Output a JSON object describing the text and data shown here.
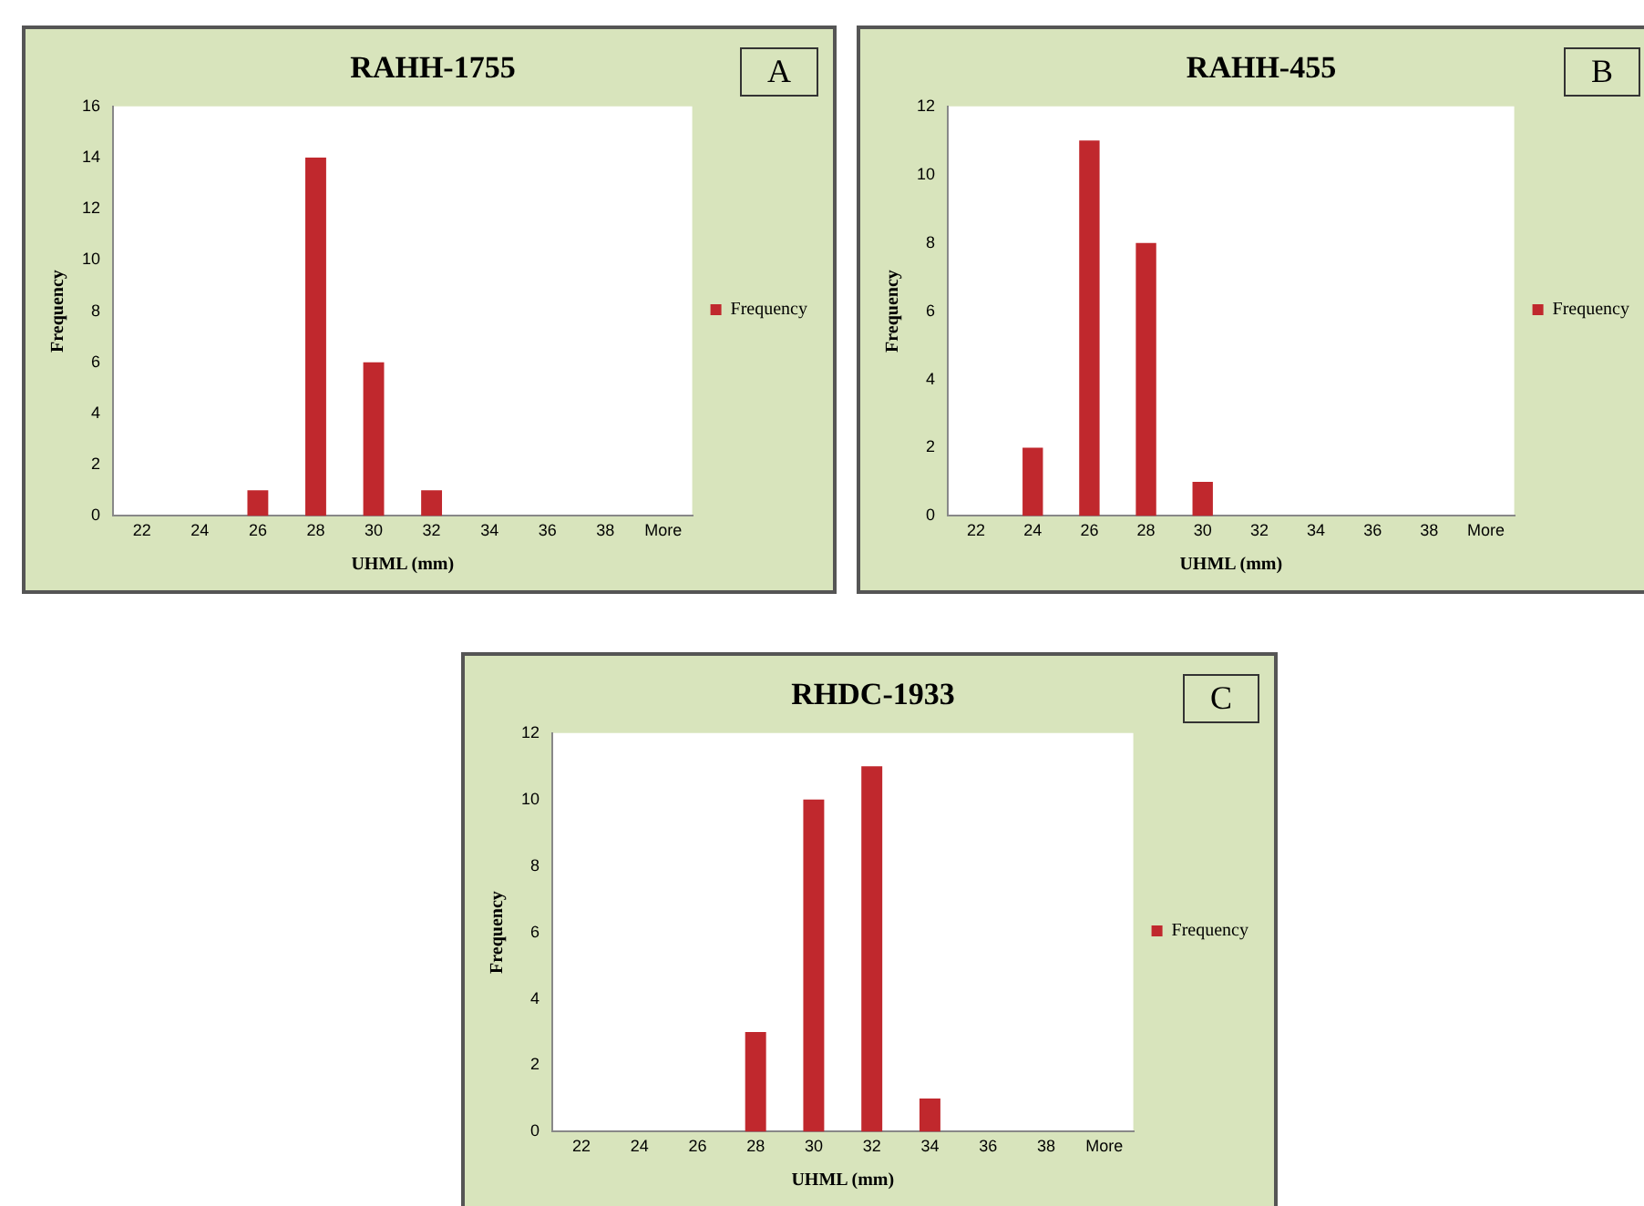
{
  "chart_data": [
    {
      "type": "bar",
      "title": "RAHH-1755",
      "xlabel": "UHML (mm)",
      "ylabel": "Frequency",
      "categories": [
        "22",
        "24",
        "26",
        "28",
        "30",
        "32",
        "34",
        "36",
        "38",
        "More"
      ],
      "series": [
        {
          "name": "Frequency",
          "color": "#c0282d",
          "values": [
            0,
            0,
            1,
            14,
            6,
            1,
            0,
            0,
            0,
            0
          ]
        }
      ],
      "ylim": [
        0,
        16
      ],
      "yticks": [
        0,
        2,
        4,
        6,
        8,
        10,
        12,
        14,
        16
      ],
      "grid": false,
      "legend": "right",
      "annotations": [
        "A"
      ]
    },
    {
      "type": "bar",
      "title": "RAHH-455",
      "xlabel": "UHML (mm)",
      "ylabel": "Frequency",
      "categories": [
        "22",
        "24",
        "26",
        "28",
        "30",
        "32",
        "34",
        "36",
        "38",
        "More"
      ],
      "series": [
        {
          "name": "Frequency",
          "color": "#c0282d",
          "values": [
            0,
            2,
            11,
            8,
            1,
            0,
            0,
            0,
            0,
            0
          ]
        }
      ],
      "ylim": [
        0,
        12
      ],
      "yticks": [
        0,
        2,
        4,
        6,
        8,
        10,
        12
      ],
      "grid": false,
      "legend": "right",
      "annotations": [
        "B"
      ]
    },
    {
      "type": "bar",
      "title": "RHDC-1933",
      "xlabel": "UHML (mm)",
      "ylabel": "Frequency",
      "categories": [
        "22",
        "24",
        "26",
        "28",
        "30",
        "32",
        "34",
        "36",
        "38",
        "More"
      ],
      "series": [
        {
          "name": "Frequency",
          "color": "#c0282d",
          "values": [
            0,
            0,
            0,
            3,
            10,
            11,
            1,
            0,
            0,
            0
          ]
        }
      ],
      "ylim": [
        0,
        12
      ],
      "yticks": [
        0,
        2,
        4,
        6,
        8,
        10,
        12
      ],
      "grid": false,
      "legend": "right",
      "annotations": [
        "C"
      ]
    }
  ]
}
